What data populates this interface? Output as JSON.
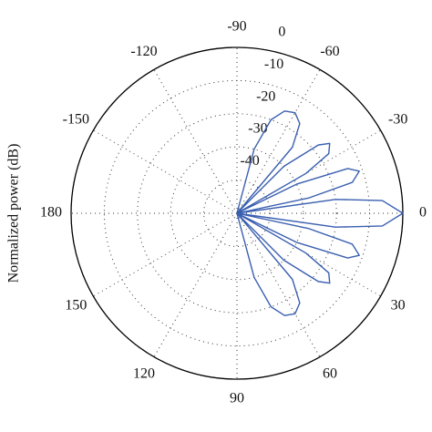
{
  "chart_data": {
    "type": "polar",
    "ylabel": "Normalized power (dB)",
    "rlim": [
      -50,
      0
    ],
    "rticks": [
      -40,
      -30,
      -20,
      -10,
      0
    ],
    "thetaticks": [
      0,
      -30,
      -60,
      -90,
      -120,
      -150,
      180,
      150,
      120,
      90,
      60,
      30
    ],
    "grid": true,
    "series": [
      {
        "color": "#3a5fb0",
        "theta": [
          -80,
          -75,
          -70,
          -65,
          -60,
          -55,
          -50,
          -47,
          -45,
          -40,
          -37,
          -33,
          -30,
          -28,
          -26,
          -22,
          -19,
          -15,
          -12,
          -10,
          -8,
          -5,
          0,
          5,
          8,
          10,
          12,
          15,
          19,
          22,
          26,
          28,
          30,
          33,
          37,
          40,
          45,
          47,
          50,
          55,
          60,
          65,
          70,
          75,
          80
        ],
        "values": [
          -50,
          -30,
          -20,
          -16,
          -15,
          -17,
          -24,
          -50,
          -30,
          -18,
          -15,
          -17,
          -26,
          -50,
          -30,
          -14,
          -11,
          -14,
          -28,
          -50,
          -20,
          -6,
          0,
          -6,
          -20,
          -50,
          -28,
          -14,
          -11,
          -14,
          -30,
          -50,
          -26,
          -17,
          -15,
          -18,
          -30,
          -50,
          -24,
          -17,
          -15,
          -16,
          -20,
          -30,
          -50
        ]
      }
    ]
  }
}
